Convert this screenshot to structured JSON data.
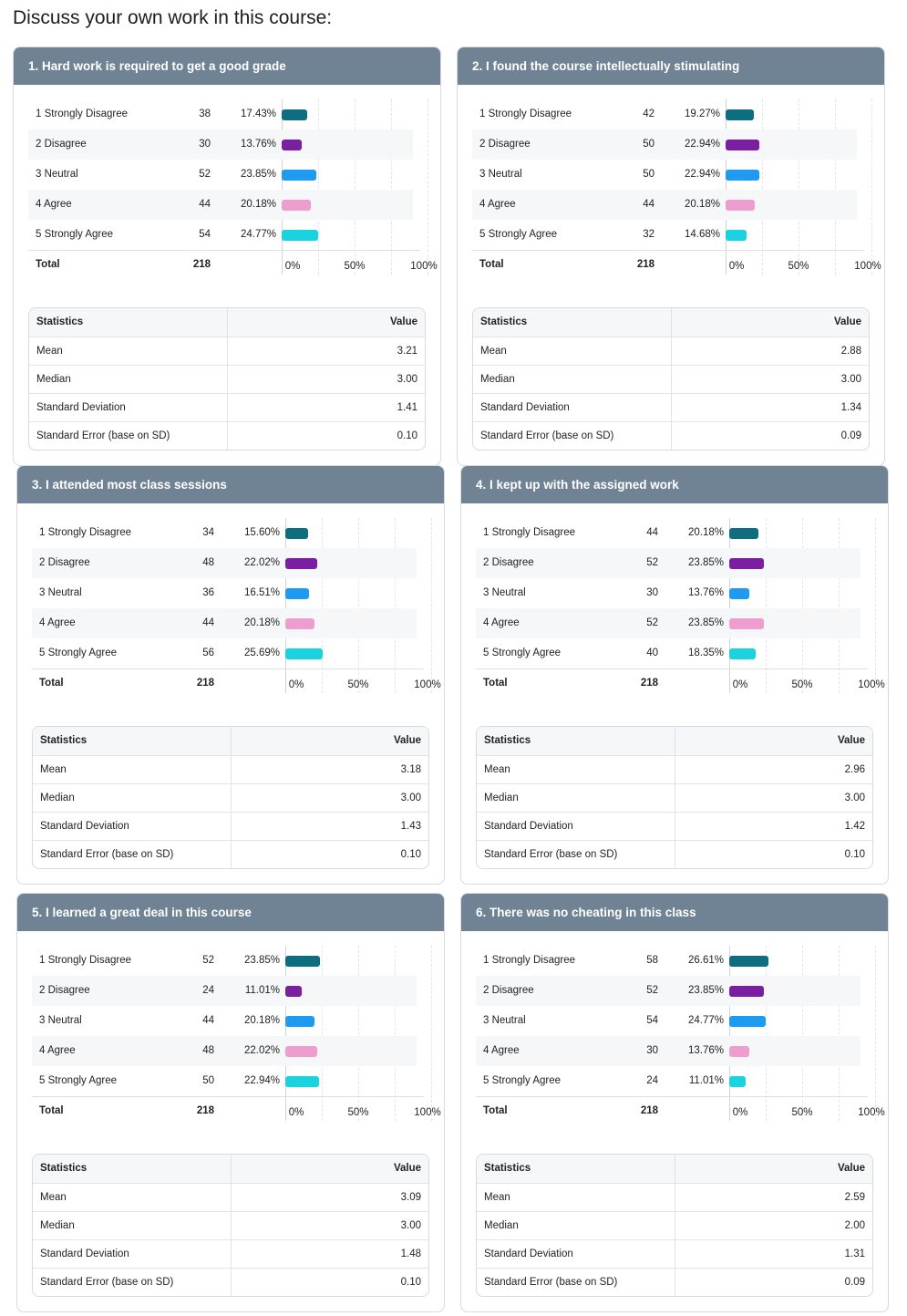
{
  "page": {
    "title": "Discuss your own work in this course:"
  },
  "labels": {
    "total": "Total",
    "stats_header": "Statistics",
    "value_header": "Value",
    "ticks": [
      "0%",
      "50%",
      "100%"
    ]
  },
  "colors": [
    "#0e6e7f",
    "#7b1fa2",
    "#1e9bf0",
    "#ee9dcf",
    "#1bd2df"
  ],
  "chart_data": [
    {
      "type": "bar",
      "title": "1. Hard work is required to get a good grade",
      "categories": [
        "1 Strongly Disagree",
        "2 Disagree",
        "3 Neutral",
        "4 Agree",
        "5 Strongly Agree"
      ],
      "counts": [
        "38",
        "30",
        "52",
        "44",
        "54"
      ],
      "percents": [
        "17.43%",
        "13.76%",
        "23.85%",
        "20.18%",
        "24.77%"
      ],
      "values": [
        17.43,
        13.76,
        23.85,
        20.18,
        24.77
      ],
      "total": "218",
      "xlim": [
        0,
        100
      ],
      "stats": [
        {
          "label": "Mean",
          "value": "3.21"
        },
        {
          "label": "Median",
          "value": "3.00"
        },
        {
          "label": "Standard Deviation",
          "value": "1.41"
        },
        {
          "label": "Standard Error (base on SD)",
          "value": "0.10"
        }
      ]
    },
    {
      "type": "bar",
      "title": "2. I found the course intellectually stimulating",
      "categories": [
        "1 Strongly Disagree",
        "2 Disagree",
        "3 Neutral",
        "4 Agree",
        "5 Strongly Agree"
      ],
      "counts": [
        "42",
        "50",
        "50",
        "44",
        "32"
      ],
      "percents": [
        "19.27%",
        "22.94%",
        "22.94%",
        "20.18%",
        "14.68%"
      ],
      "values": [
        19.27,
        22.94,
        22.94,
        20.18,
        14.68
      ],
      "total": "218",
      "xlim": [
        0,
        100
      ],
      "stats": [
        {
          "label": "Mean",
          "value": "2.88"
        },
        {
          "label": "Median",
          "value": "3.00"
        },
        {
          "label": "Standard Deviation",
          "value": "1.34"
        },
        {
          "label": "Standard Error (base on SD)",
          "value": "0.09"
        }
      ]
    },
    {
      "type": "bar",
      "title": "3. I attended most class sessions",
      "categories": [
        "1 Strongly Disagree",
        "2 Disagree",
        "3 Neutral",
        "4 Agree",
        "5 Strongly Agree"
      ],
      "counts": [
        "34",
        "48",
        "36",
        "44",
        "56"
      ],
      "percents": [
        "15.60%",
        "22.02%",
        "16.51%",
        "20.18%",
        "25.69%"
      ],
      "values": [
        15.6,
        22.02,
        16.51,
        20.18,
        25.69
      ],
      "total": "218",
      "xlim": [
        0,
        100
      ],
      "stats": [
        {
          "label": "Mean",
          "value": "3.18"
        },
        {
          "label": "Median",
          "value": "3.00"
        },
        {
          "label": "Standard Deviation",
          "value": "1.43"
        },
        {
          "label": "Standard Error (base on SD)",
          "value": "0.10"
        }
      ]
    },
    {
      "type": "bar",
      "title": "4. I kept up with the assigned work",
      "categories": [
        "1 Strongly Disagree",
        "2 Disagree",
        "3 Neutral",
        "4 Agree",
        "5 Strongly Agree"
      ],
      "counts": [
        "44",
        "52",
        "30",
        "52",
        "40"
      ],
      "percents": [
        "20.18%",
        "23.85%",
        "13.76%",
        "23.85%",
        "18.35%"
      ],
      "values": [
        20.18,
        23.85,
        13.76,
        23.85,
        18.35
      ],
      "total": "218",
      "xlim": [
        0,
        100
      ],
      "stats": [
        {
          "label": "Mean",
          "value": "2.96"
        },
        {
          "label": "Median",
          "value": "3.00"
        },
        {
          "label": "Standard Deviation",
          "value": "1.42"
        },
        {
          "label": "Standard Error (base on SD)",
          "value": "0.10"
        }
      ]
    },
    {
      "type": "bar",
      "title": "5. I learned a great deal in this course",
      "categories": [
        "1 Strongly Disagree",
        "2 Disagree",
        "3 Neutral",
        "4 Agree",
        "5 Strongly Agree"
      ],
      "counts": [
        "52",
        "24",
        "44",
        "48",
        "50"
      ],
      "percents": [
        "23.85%",
        "11.01%",
        "20.18%",
        "22.02%",
        "22.94%"
      ],
      "values": [
        23.85,
        11.01,
        20.18,
        22.02,
        22.94
      ],
      "total": "218",
      "xlim": [
        0,
        100
      ],
      "stats": [
        {
          "label": "Mean",
          "value": "3.09"
        },
        {
          "label": "Median",
          "value": "3.00"
        },
        {
          "label": "Standard Deviation",
          "value": "1.48"
        },
        {
          "label": "Standard Error (base on SD)",
          "value": "0.10"
        }
      ]
    },
    {
      "type": "bar",
      "title": "6. There was no cheating in this class",
      "categories": [
        "1 Strongly Disagree",
        "2 Disagree",
        "3 Neutral",
        "4 Agree",
        "5 Strongly Agree"
      ],
      "counts": [
        "58",
        "52",
        "54",
        "30",
        "24"
      ],
      "percents": [
        "26.61%",
        "23.85%",
        "24.77%",
        "13.76%",
        "11.01%"
      ],
      "values": [
        26.61,
        23.85,
        24.77,
        13.76,
        11.01
      ],
      "total": "218",
      "xlim": [
        0,
        100
      ],
      "stats": [
        {
          "label": "Mean",
          "value": "2.59"
        },
        {
          "label": "Median",
          "value": "2.00"
        },
        {
          "label": "Standard Deviation",
          "value": "1.31"
        },
        {
          "label": "Standard Error (base on SD)",
          "value": "0.09"
        }
      ]
    }
  ]
}
